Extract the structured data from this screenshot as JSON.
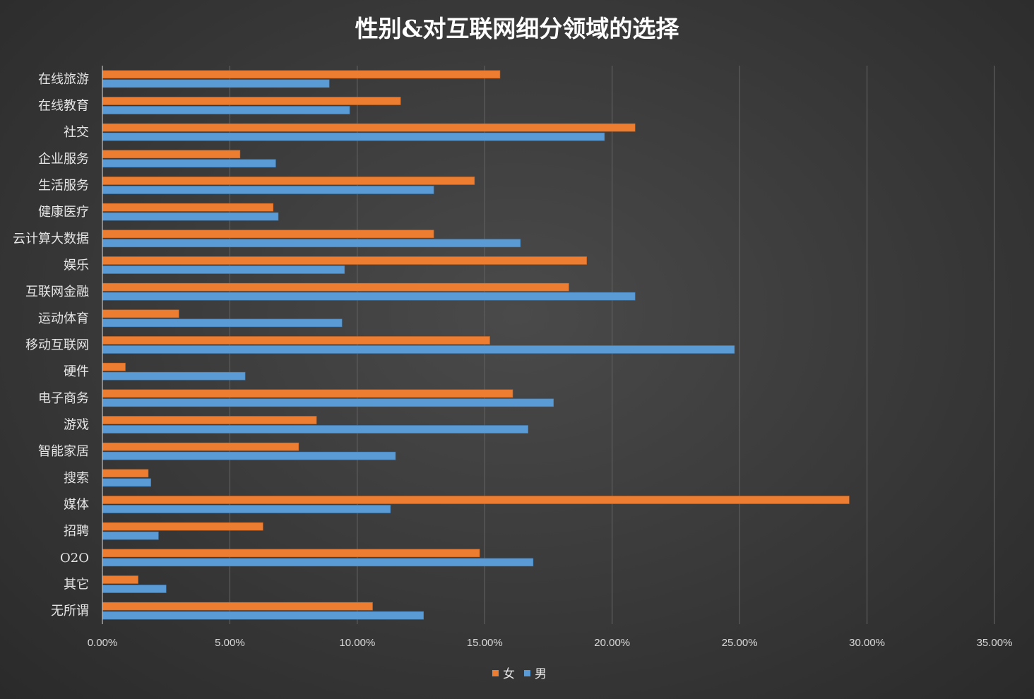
{
  "chart_data": {
    "type": "bar",
    "orientation": "horizontal",
    "title": "性别&对互联网细分领域的选择",
    "categories": [
      "在线旅游",
      "在线教育",
      "社交",
      "企业服务",
      "生活服务",
      "健康医疗",
      "云计算大数据",
      "娱乐",
      "互联网金融",
      "运动体育",
      "移动互联网",
      "硬件",
      "电子商务",
      "游戏",
      "智能家居",
      "搜索",
      "媒体",
      "招聘",
      "O2O",
      "其它",
      "无所谓"
    ],
    "series": [
      {
        "name": "女",
        "color": "#ED7D31",
        "values": [
          15.6,
          11.7,
          20.9,
          5.4,
          14.6,
          6.7,
          13.0,
          19.0,
          18.3,
          3.0,
          15.2,
          0.9,
          16.1,
          8.4,
          7.7,
          1.8,
          29.3,
          6.3,
          14.8,
          1.4,
          10.6
        ]
      },
      {
        "name": "男",
        "color": "#5B9BD5",
        "values": [
          8.9,
          9.7,
          19.7,
          6.8,
          13.0,
          6.9,
          16.4,
          9.5,
          20.9,
          9.4,
          24.8,
          5.6,
          17.7,
          16.7,
          11.5,
          1.9,
          11.3,
          2.2,
          16.9,
          2.5,
          12.6
        ]
      }
    ],
    "xlim": [
      0,
      35
    ],
    "xticks": [
      "0.00%",
      "5.00%",
      "10.00%",
      "15.00%",
      "20.00%",
      "25.00%",
      "30.00%",
      "35.00%"
    ],
    "grid": true,
    "legend_position": "bottom"
  }
}
